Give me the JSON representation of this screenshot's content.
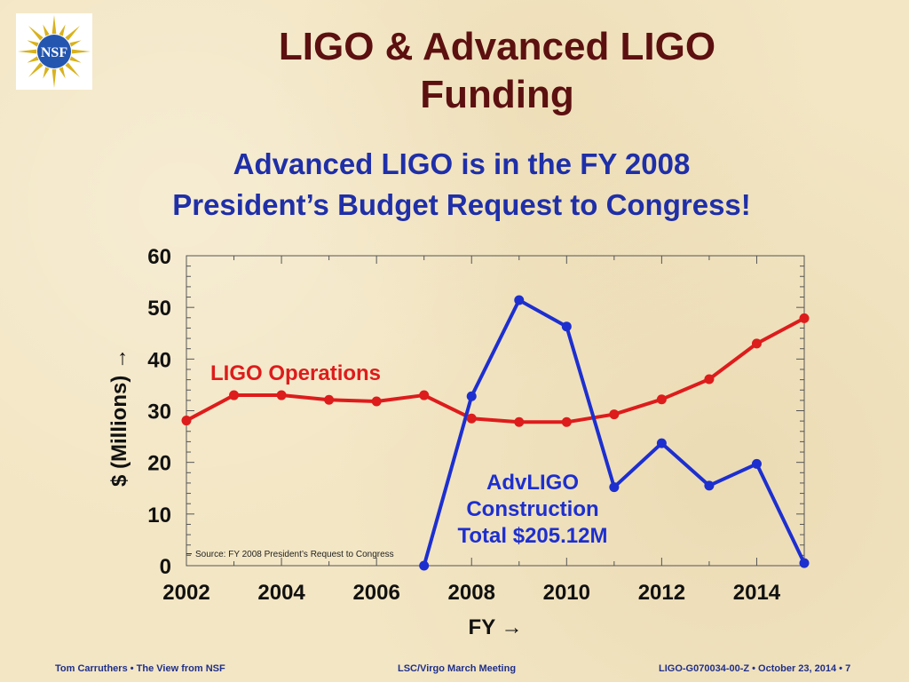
{
  "title_line1": "LIGO & Advanced LIGO",
  "title_line2": "Funding",
  "subtitle_line1": "Advanced LIGO is in the FY 2008",
  "subtitle_line2": "President’s Budget Request to Congress!",
  "logo_text": "NSF",
  "chart_data": {
    "type": "line",
    "xlabel": "FY →",
    "ylabel": "$ (Millions) →",
    "xlim": [
      2002,
      2015
    ],
    "ylim": [
      0,
      60
    ],
    "x_ticks": [
      2002,
      2004,
      2006,
      2008,
      2010,
      2012,
      2014
    ],
    "y_ticks": [
      0,
      10,
      20,
      30,
      40,
      50,
      60
    ],
    "grid": false,
    "series": [
      {
        "name": "LIGO Operations",
        "color": "#dd1c1c",
        "x": [
          2002,
          2003,
          2004,
          2005,
          2006,
          2007,
          2008,
          2009,
          2010,
          2011,
          2012,
          2013,
          2014,
          2015
        ],
        "y": [
          28.1,
          33.0,
          33.0,
          32.1,
          31.8,
          33.0,
          28.5,
          27.8,
          27.8,
          29.3,
          32.2,
          36.1,
          43.0,
          47.9
        ]
      },
      {
        "name": "AdvLIGO",
        "color": "#1d2fcf",
        "x": [
          2007,
          2008,
          2009,
          2010,
          2011,
          2012,
          2013,
          2014,
          2015
        ],
        "y": [
          0.0,
          32.8,
          51.4,
          46.3,
          15.2,
          23.7,
          15.5,
          19.7,
          0.5
        ]
      }
    ],
    "annotations": {
      "ops_label": "LIGO Operations",
      "adv_label_1": "AdvLIGO",
      "adv_label_2": "Construction",
      "adv_label_3": "Total $205.12M",
      "source": "Source:  FY 2008 President’s Request to Congress"
    }
  },
  "footer": {
    "left": "Tom Carruthers  •  The View from NSF",
    "center": "LSC/Virgo March Meeting",
    "right": "LIGO-G070034-00-Z  •  October 23, 2014  •  7"
  }
}
